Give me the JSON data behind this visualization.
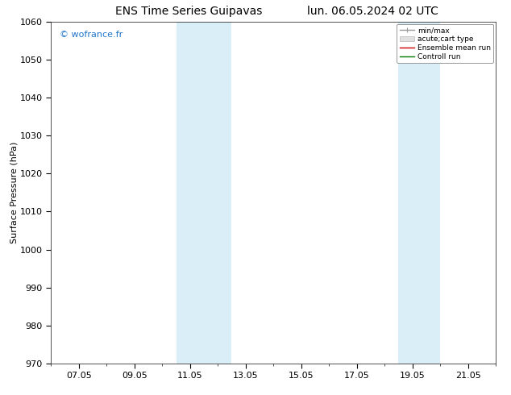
{
  "title_left": "ENS Time Series Guipavas",
  "title_right": "lun. 06.05.2024 02 UTC",
  "ylabel": "Surface Pressure (hPa)",
  "ylim": [
    970,
    1060
  ],
  "yticks": [
    970,
    980,
    990,
    1000,
    1010,
    1020,
    1030,
    1040,
    1050,
    1060
  ],
  "xlabel_ticks": [
    "07.05",
    "09.05",
    "11.05",
    "13.05",
    "15.05",
    "17.05",
    "19.05",
    "21.05"
  ],
  "xlabel_tick_positions": [
    1,
    3,
    5,
    7,
    9,
    11,
    13,
    15
  ],
  "xmin": 0,
  "xmax": 16,
  "shaded_regions": [
    {
      "xstart": 4.5,
      "xend": 6.5,
      "color": "#daeef8"
    },
    {
      "xstart": 12.5,
      "xend": 14.0,
      "color": "#daeef8"
    }
  ],
  "watermark": "© wofrance.fr",
  "watermark_color": "#2277cc",
  "legend_entries": [
    {
      "label": "min/max",
      "color": "#999999",
      "lw": 1.0
    },
    {
      "label": "acute;cart type",
      "color": "#cccccc",
      "lw": 5
    },
    {
      "label": "Ensemble mean run",
      "color": "#cc0000",
      "lw": 1.0
    },
    {
      "label": "Controll run",
      "color": "#007700",
      "lw": 1.0
    }
  ],
  "bg_color": "#ffffff",
  "plot_bg_color": "#ffffff",
  "spine_color": "#333333",
  "grid_color": "#cccccc",
  "title_fontsize": 10,
  "tick_fontsize": 8,
  "ylabel_fontsize": 8
}
